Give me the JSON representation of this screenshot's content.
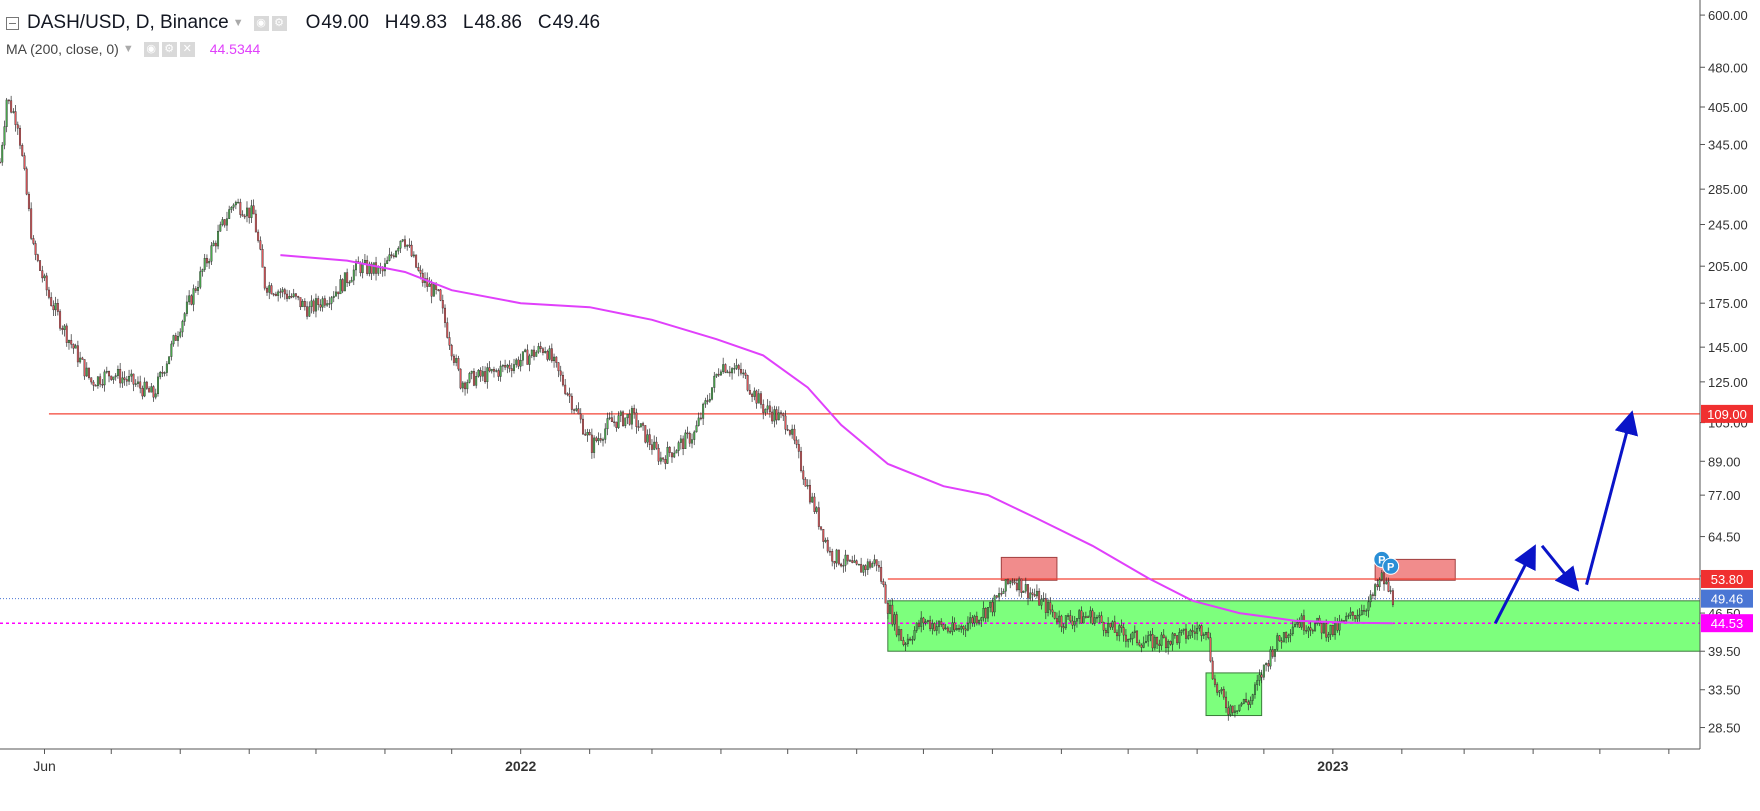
{
  "header": {
    "symbol": "DASH/USD, D, Binance",
    "open_label": "O",
    "open": "49.00",
    "high_label": "H",
    "high": "49.83",
    "low_label": "L",
    "low": "48.86",
    "close_label": "C",
    "close": "49.46",
    "indicator": "MA (200, close, 0)",
    "indicator_value": "44.5344"
  },
  "colors": {
    "up": "#4caf50",
    "down": "#e0575b",
    "wick": "#2b2b2b",
    "ma": "#e040fb",
    "resistance": "#f44336",
    "support_zone": "#66ff66",
    "arrow": "#0a14c8",
    "price_tag": "#4a76d4",
    "ma_tag": "#ff00ff"
  },
  "chart_data": {
    "type": "candlestick",
    "y_scale": "log",
    "ylim": [
      26,
      640
    ],
    "y_ticks": [
      "600.00",
      "480.00",
      "405.00",
      "345.00",
      "285.00",
      "245.00",
      "205.00",
      "175.00",
      "145.00",
      "125.00",
      "105.00",
      "89.00",
      "77.00",
      "64.50",
      "54.50",
      "46.50",
      "39.50",
      "33.50",
      "28.50"
    ],
    "x_labels": [
      {
        "label": "Jun",
        "date": "2021-06-01"
      },
      {
        "label": "2022",
        "date": "2022-01-01"
      },
      {
        "label": "2023",
        "date": "2023-01-01"
      }
    ],
    "x_range": [
      "2021-05-12",
      "2023-06-15"
    ],
    "price_path": [
      [
        "2021-05-12",
        320
      ],
      [
        "2021-05-15",
        420
      ],
      [
        "2021-05-20",
        380
      ],
      [
        "2021-05-27",
        220
      ],
      [
        "2021-06-03",
        180
      ],
      [
        "2021-06-12",
        150
      ],
      [
        "2021-06-22",
        125
      ],
      [
        "2021-07-01",
        130
      ],
      [
        "2021-07-10",
        125
      ],
      [
        "2021-07-20",
        118
      ],
      [
        "2021-08-01",
        160
      ],
      [
        "2021-08-15",
        220
      ],
      [
        "2021-08-25",
        270
      ],
      [
        "2021-09-03",
        255
      ],
      [
        "2021-09-08",
        190
      ],
      [
        "2021-09-20",
        180
      ],
      [
        "2021-09-28",
        170
      ],
      [
        "2021-10-10",
        185
      ],
      [
        "2021-10-20",
        205
      ],
      [
        "2021-10-31",
        200
      ],
      [
        "2021-11-09",
        235
      ],
      [
        "2021-11-17",
        195
      ],
      [
        "2021-11-25",
        180
      ],
      [
        "2021-12-05",
        125
      ],
      [
        "2021-12-20",
        130
      ],
      [
        "2022-01-05",
        140
      ],
      [
        "2022-01-12",
        145
      ],
      [
        "2022-01-22",
        120
      ],
      [
        "2022-02-02",
        95
      ],
      [
        "2022-02-10",
        105
      ],
      [
        "2022-02-20",
        108
      ],
      [
        "2022-03-05",
        90
      ],
      [
        "2022-03-20",
        100
      ],
      [
        "2022-04-01",
        135
      ],
      [
        "2022-04-10",
        130
      ],
      [
        "2022-04-20",
        112
      ],
      [
        "2022-05-01",
        105
      ],
      [
        "2022-05-12",
        75
      ],
      [
        "2022-05-20",
        60
      ],
      [
        "2022-06-01",
        56
      ],
      [
        "2022-06-10",
        58
      ],
      [
        "2022-06-15",
        48
      ],
      [
        "2022-06-22",
        41
      ],
      [
        "2022-07-01",
        45
      ],
      [
        "2022-07-15",
        43
      ],
      [
        "2022-08-01",
        48
      ],
      [
        "2022-08-10",
        54
      ],
      [
        "2022-08-20",
        50
      ],
      [
        "2022-09-01",
        45
      ],
      [
        "2022-09-15",
        46
      ],
      [
        "2022-09-25",
        43
      ],
      [
        "2022-10-10",
        41
      ],
      [
        "2022-10-25",
        42
      ],
      [
        "2022-11-05",
        44
      ],
      [
        "2022-11-09",
        34
      ],
      [
        "2022-11-15",
        31
      ],
      [
        "2022-11-25",
        32
      ],
      [
        "2022-12-05",
        40
      ],
      [
        "2022-12-15",
        45
      ],
      [
        "2022-12-25",
        44
      ],
      [
        "2023-01-01",
        43
      ],
      [
        "2023-01-10",
        46
      ],
      [
        "2023-01-18",
        49
      ],
      [
        "2023-01-23",
        54
      ],
      [
        "2023-01-28",
        49.46
      ]
    ],
    "ma200": {
      "name": "MA (200, close, 0)",
      "points": [
        [
          "2021-09-15",
          215
        ],
        [
          "2021-10-15",
          210
        ],
        [
          "2021-11-10",
          200
        ],
        [
          "2021-12-01",
          185
        ],
        [
          "2022-01-01",
          175
        ],
        [
          "2022-02-01",
          172
        ],
        [
          "2022-03-01",
          163
        ],
        [
          "2022-03-30",
          150
        ],
        [
          "2022-04-20",
          140
        ],
        [
          "2022-05-10",
          122
        ],
        [
          "2022-05-25",
          104
        ],
        [
          "2022-06-15",
          88
        ],
        [
          "2022-07-10",
          80
        ],
        [
          "2022-07-30",
          77
        ],
        [
          "2022-08-20",
          70
        ],
        [
          "2022-09-15",
          62
        ],
        [
          "2022-10-10",
          54
        ],
        [
          "2022-10-30",
          49
        ],
        [
          "2022-11-20",
          46.5
        ],
        [
          "2022-12-15",
          45
        ],
        [
          "2023-01-10",
          44.6
        ],
        [
          "2023-01-28",
          44.53
        ]
      ]
    },
    "horizontal_lines": [
      {
        "value": 109,
        "from": "2021-06-03",
        "label": "109.00",
        "color": "#f44336"
      },
      {
        "value": 53.8,
        "from": "2022-06-15",
        "label": "53.80",
        "color": "#f44336"
      }
    ],
    "current_price": {
      "value": 49.46,
      "label": "49.46"
    },
    "ma_price": {
      "value": 44.53,
      "label": "44.53"
    },
    "zones": [
      {
        "kind": "support",
        "from": "2022-06-15",
        "to": "2023-06-15",
        "low": 39.5,
        "high": 49.0,
        "color": "#66ff66"
      },
      {
        "kind": "support",
        "from": "2022-11-05",
        "to": "2022-11-30",
        "low": 30.0,
        "high": 36.0,
        "color": "#66ff66"
      },
      {
        "kind": "resistance",
        "from": "2022-08-05",
        "to": "2022-08-30",
        "low": 53.5,
        "high": 59.0,
        "color": "#f08080"
      },
      {
        "kind": "resistance",
        "from": "2023-01-20",
        "to": "2023-02-25",
        "low": 53.5,
        "high": 58.5,
        "color": "#f08080"
      }
    ],
    "projection_arrows": [
      {
        "from": [
          "2023-03-15",
          44.5
        ],
        "to": [
          "2023-04-01",
          61
        ]
      },
      {
        "from": [
          "2023-04-05",
          62
        ],
        "to": [
          "2023-04-20",
          52
        ]
      },
      {
        "from": [
          "2023-04-25",
          52.5
        ],
        "to": [
          "2023-05-15",
          108
        ]
      }
    ],
    "pivot_markers": [
      {
        "date": "2023-01-23",
        "value": 58.5,
        "label": "P"
      },
      {
        "date": "2023-01-27",
        "value": 56.8,
        "label": "P"
      }
    ]
  }
}
